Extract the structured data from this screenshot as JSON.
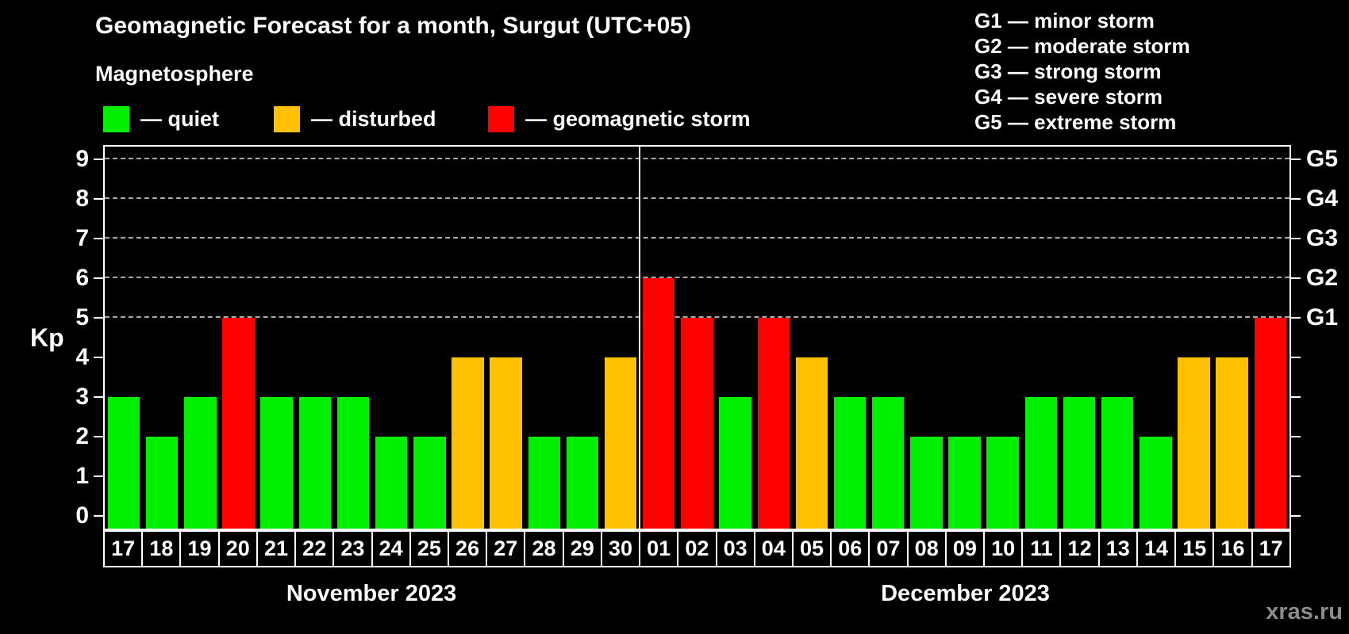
{
  "header": {
    "title": "Geomagnetic Forecast for a month, Surgut (UTC+05)",
    "subtitle": "Magnetosphere"
  },
  "colors": {
    "quiet": "#00ee00",
    "disturbed": "#ffc000",
    "storm": "#ff0000",
    "background": "#000000",
    "gridline": "#aaaaaa",
    "watermark": "#8c8c8c"
  },
  "legend": {
    "items": [
      {
        "key": "quiet",
        "label": "— quiet"
      },
      {
        "key": "disturbed",
        "label": "— disturbed"
      },
      {
        "key": "storm",
        "label": "— geomagnetic storm"
      }
    ]
  },
  "g_scale": {
    "items": [
      {
        "text": "G1 — minor storm"
      },
      {
        "text": "G2 — moderate storm"
      },
      {
        "text": "G3 — strong storm"
      },
      {
        "text": "G4 — severe storm"
      },
      {
        "text": "G5 — extreme storm"
      }
    ]
  },
  "watermark": "xras.ru",
  "chart_data": {
    "type": "bar",
    "title": "Geomagnetic Forecast for a month, Surgut (UTC+05)",
    "ylabel": "Kp",
    "ylim": [
      0,
      9
    ],
    "y_ticks": [
      0,
      1,
      2,
      3,
      4,
      5,
      6,
      7,
      8,
      9
    ],
    "gridlines_at": [
      5,
      6,
      7,
      8,
      9
    ],
    "right_axis_labels": [
      {
        "kp": 5,
        "label": "G1"
      },
      {
        "kp": 6,
        "label": "G2"
      },
      {
        "kp": 7,
        "label": "G3"
      },
      {
        "kp": 8,
        "label": "G4"
      },
      {
        "kp": 9,
        "label": "G5"
      }
    ],
    "color_rule": {
      "quiet_max_kp": 3,
      "disturbed_kp": 4,
      "storm_min_kp": 5
    },
    "months": [
      {
        "label": "November 2023",
        "days": [
          {
            "day": "17",
            "kp": 3
          },
          {
            "day": "18",
            "kp": 2
          },
          {
            "day": "19",
            "kp": 3
          },
          {
            "day": "20",
            "kp": 5
          },
          {
            "day": "21",
            "kp": 3
          },
          {
            "day": "22",
            "kp": 3
          },
          {
            "day": "23",
            "kp": 3
          },
          {
            "day": "24",
            "kp": 2
          },
          {
            "day": "25",
            "kp": 2
          },
          {
            "day": "26",
            "kp": 4
          },
          {
            "day": "27",
            "kp": 4
          },
          {
            "day": "28",
            "kp": 2
          },
          {
            "day": "29",
            "kp": 2
          },
          {
            "day": "30",
            "kp": 4
          }
        ]
      },
      {
        "label": "December 2023",
        "days": [
          {
            "day": "01",
            "kp": 6
          },
          {
            "day": "02",
            "kp": 5
          },
          {
            "day": "03",
            "kp": 3
          },
          {
            "day": "04",
            "kp": 5
          },
          {
            "day": "05",
            "kp": 4
          },
          {
            "day": "06",
            "kp": 3
          },
          {
            "day": "07",
            "kp": 3
          },
          {
            "day": "08",
            "kp": 2
          },
          {
            "day": "09",
            "kp": 2
          },
          {
            "day": "10",
            "kp": 2
          },
          {
            "day": "11",
            "kp": 3
          },
          {
            "day": "12",
            "kp": 3
          },
          {
            "day": "13",
            "kp": 3
          },
          {
            "day": "14",
            "kp": 2
          },
          {
            "day": "15",
            "kp": 4
          },
          {
            "day": "16",
            "kp": 4
          },
          {
            "day": "17",
            "kp": 5
          }
        ]
      }
    ]
  }
}
